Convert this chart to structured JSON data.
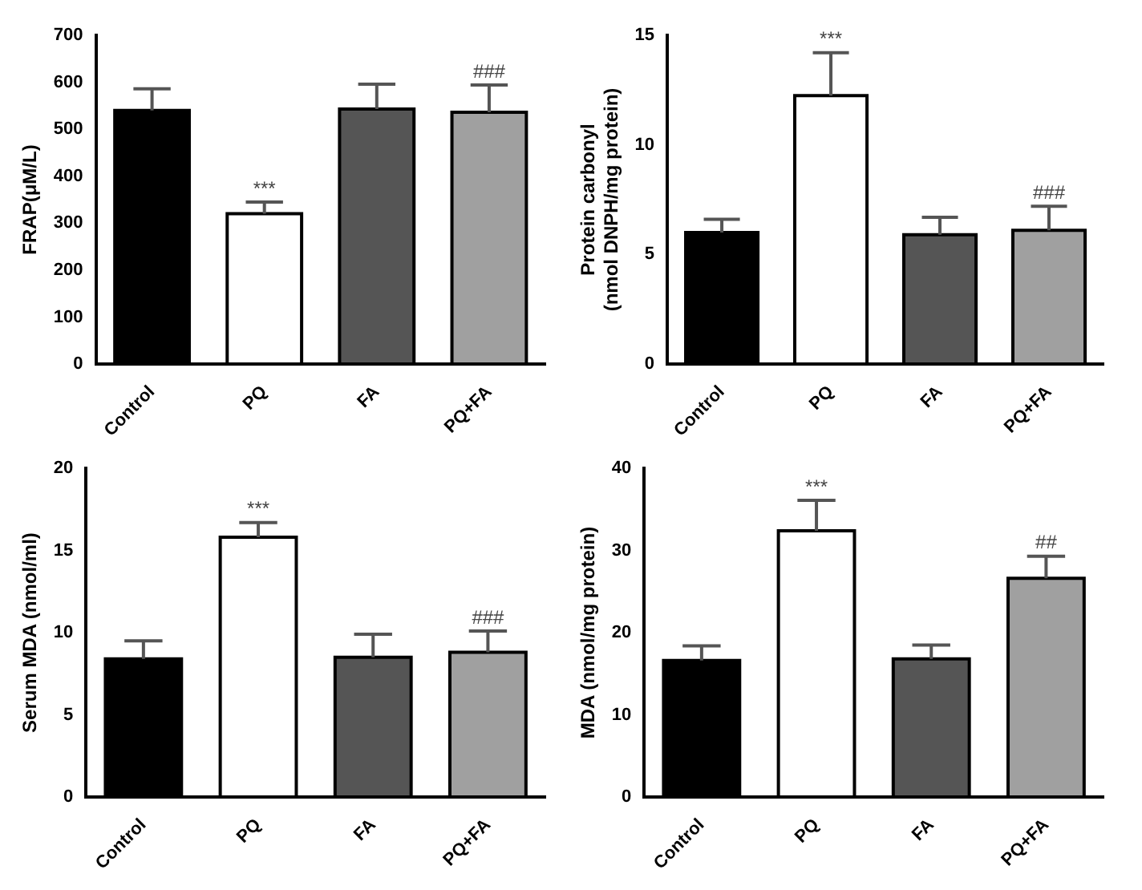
{
  "chart_data": [
    {
      "type": "bar",
      "ylabel": "FRAP(μM/L)",
      "categories": [
        "Control",
        "PQ",
        "FA",
        "PQ+FA"
      ],
      "values": [
        540,
        320,
        543,
        536
      ],
      "colors": [
        "#000000",
        "#ffffff",
        "#555555",
        "#a0a0a0"
      ],
      "errors": [
        [
          540,
          586
        ],
        [
          320,
          345
        ],
        [
          543,
          596
        ],
        [
          536,
          594
        ]
      ],
      "ylim": [
        0,
        700
      ],
      "yticks": [
        0,
        100,
        200,
        300,
        400,
        500,
        600,
        700
      ],
      "annotations": [
        {
          "text": "***",
          "x": "PQ",
          "y": 345
        },
        {
          "text": "###",
          "x": "PQ+FA",
          "y": 594
        }
      ]
    },
    {
      "type": "bar",
      "ylabel": "Protein carbonyl\n(nmol DNPH/mg protein)",
      "categories": [
        "Control",
        "PQ",
        "FA",
        "PQ+FA"
      ],
      "values": [
        6.0,
        12.25,
        5.9,
        6.1
      ],
      "colors": [
        "#000000",
        "#ffffff",
        "#555555",
        "#a0a0a0"
      ],
      "errors": [
        [
          6.0,
          6.6
        ],
        [
          12.25,
          14.2
        ],
        [
          5.9,
          6.7
        ],
        [
          6.1,
          7.2
        ]
      ],
      "ylim": [
        0,
        15
      ],
      "yticks": [
        0,
        5,
        10,
        15
      ],
      "annotations": [
        {
          "text": "***",
          "x": "PQ",
          "y": 14.2
        },
        {
          "text": "###",
          "x": "PQ+FA",
          "y": 7.2
        }
      ]
    },
    {
      "type": "bar",
      "ylabel": "Serum MDA (nmol/ml)",
      "categories": [
        "Control",
        "PQ",
        "FA",
        "PQ+FA"
      ],
      "values": [
        8.4,
        15.8,
        8.5,
        8.8
      ],
      "colors": [
        "#000000",
        "#ffffff",
        "#555555",
        "#a0a0a0"
      ],
      "errors": [
        [
          8.4,
          9.5
        ],
        [
          15.8,
          16.7
        ],
        [
          8.5,
          9.9
        ],
        [
          8.8,
          10.1
        ]
      ],
      "ylim": [
        0,
        20
      ],
      "yticks": [
        0,
        5,
        10,
        15,
        20
      ],
      "annotations": [
        {
          "text": "***",
          "x": "PQ",
          "y": 16.7
        },
        {
          "text": "###",
          "x": "PQ+FA",
          "y": 10.1
        }
      ]
    },
    {
      "type": "bar",
      "ylabel": "MDA (nmol/mg protein)",
      "categories": [
        "Control",
        "PQ",
        "FA",
        "PQ+FA"
      ],
      "values": [
        16.6,
        32.4,
        16.8,
        26.6
      ],
      "colors": [
        "#000000",
        "#ffffff",
        "#555555",
        "#a0a0a0"
      ],
      "errors": [
        [
          16.6,
          18.4
        ],
        [
          32.4,
          36.1
        ],
        [
          16.8,
          18.5
        ],
        [
          26.6,
          29.3
        ]
      ],
      "ylim": [
        0,
        40
      ],
      "yticks": [
        0,
        10,
        20,
        30,
        40
      ],
      "annotations": [
        {
          "text": "***",
          "x": "PQ",
          "y": 36.1
        },
        {
          "text": "##",
          "x": "PQ+FA",
          "y": 29.3
        }
      ]
    }
  ]
}
